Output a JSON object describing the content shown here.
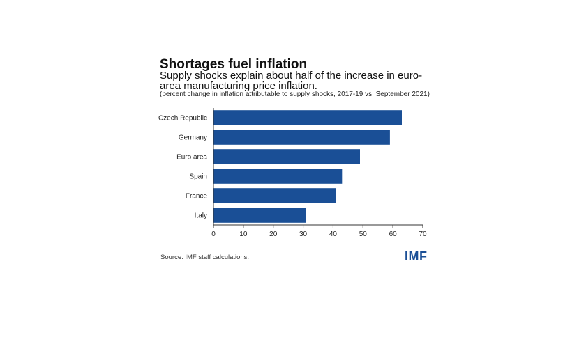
{
  "chart_data": {
    "type": "bar",
    "orientation": "horizontal",
    "title": "Shortages fuel inflation",
    "subtitle": "Supply shocks explain about half of the increase in euro-area manufacturing price inflation.",
    "note": "(percent change in inflation attributable to supply shocks, 2017-19 vs. September 2021)",
    "categories": [
      "Czech Republic",
      "Germany",
      "Euro area",
      "Spain",
      "France",
      "Italy"
    ],
    "values": [
      63,
      59,
      49,
      43,
      41,
      31
    ],
    "xlim": [
      0,
      70
    ],
    "xticks": [
      0,
      10,
      20,
      30,
      40,
      50,
      60,
      70
    ],
    "grid": false,
    "bar_color": "#1a4f96"
  },
  "footer": {
    "source": "Source: IMF staff calculations.",
    "logo": "IMF",
    "logo_color": "#1a4f96"
  }
}
